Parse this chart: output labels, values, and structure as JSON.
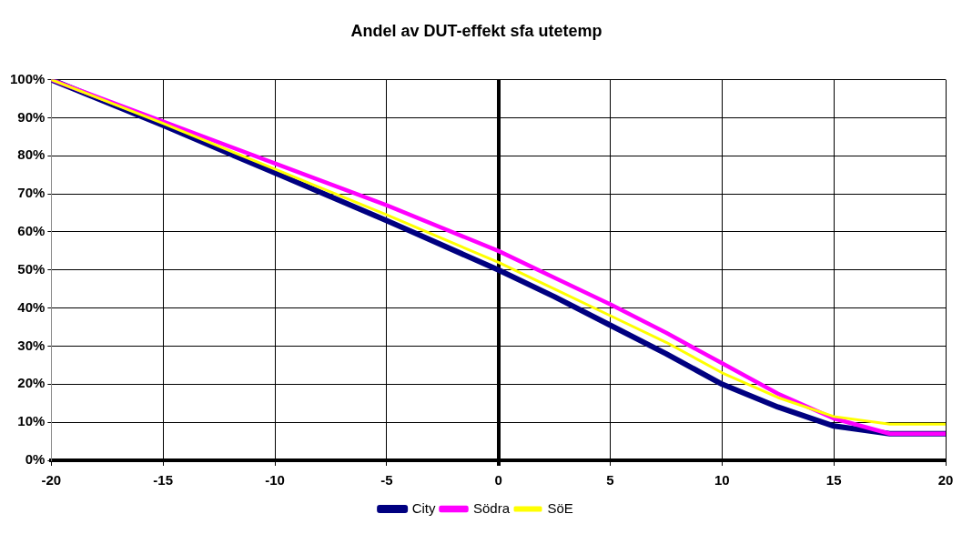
{
  "chart_data": {
    "type": "line",
    "title": "Andel av DUT-effekt sfa utetemp",
    "x": [
      -20,
      -15,
      -10,
      -5,
      0,
      2.5,
      5,
      7.5,
      10,
      12.5,
      15,
      17.5,
      20
    ],
    "series": [
      {
        "name": "City",
        "color": "#000080",
        "values": [
          100,
          88,
          75.5,
          63,
          50,
          43,
          35.5,
          28,
          20,
          14,
          9,
          7,
          7
        ]
      },
      {
        "name": "Södra",
        "color": "#ff00ff",
        "values": [
          100,
          89,
          78,
          67,
          55,
          48,
          41,
          33.5,
          25.5,
          17.5,
          11,
          7,
          7
        ]
      },
      {
        "name": "SöE",
        "color": "#ffff00",
        "values": [
          100,
          88.5,
          76.5,
          64.5,
          52,
          45,
          38,
          31,
          23,
          16.5,
          11.5,
          9.5,
          9.5
        ]
      }
    ],
    "xlim": [
      -20,
      20
    ],
    "xticks": [
      -20,
      -15,
      -10,
      -5,
      0,
      5,
      10,
      15,
      20
    ],
    "ylim": [
      0,
      100
    ],
    "yticks": [
      {
        "value": 0,
        "label": "0%"
      },
      {
        "value": 10,
        "label": "10%"
      },
      {
        "value": 20,
        "label": "20%"
      },
      {
        "value": 30,
        "label": "30%"
      },
      {
        "value": 40,
        "label": "40%"
      },
      {
        "value": 50,
        "label": "50%"
      },
      {
        "value": 60,
        "label": "60%"
      },
      {
        "value": 70,
        "label": "70%"
      },
      {
        "value": 80,
        "label": "80%"
      },
      {
        "value": 90,
        "label": "90%"
      },
      {
        "value": 100,
        "label": "100%"
      }
    ],
    "grid": true,
    "legend": "bottom",
    "marker": "none",
    "line_style": "solid"
  }
}
